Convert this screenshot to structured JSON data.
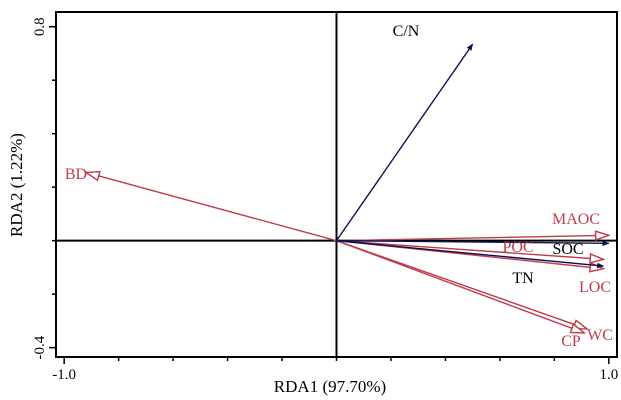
{
  "chart_data": {
    "type": "scatter",
    "subtype": "rda-biplot",
    "title": "",
    "xlabel": "RDA1 (97.70%)",
    "ylabel": "RDA2 (1.22%)",
    "xlim": [
      -1.03,
      1.03
    ],
    "ylim": [
      -0.435,
      0.855
    ],
    "x_ticks": [
      -1.0,
      1.0
    ],
    "x_tick_labels": [
      "-1.0",
      "1.0"
    ],
    "y_ticks": [
      0.8,
      -0.4
    ],
    "y_tick_labels": [
      "0.8",
      "-0.4"
    ],
    "grid": false,
    "zero_lines": true,
    "legend": "none",
    "colors": {
      "explanatory": "#0d1050",
      "response": "#c03c4a"
    },
    "series": [
      {
        "group": "explanatory",
        "arrow": "filled",
        "vectors": [
          {
            "label": "C/N",
            "x": 0.5,
            "y": 0.735
          },
          {
            "label": "SOC",
            "x": 1.0,
            "y": -0.01
          },
          {
            "label": "TN",
            "x": 0.98,
            "y": -0.095
          }
        ]
      },
      {
        "group": "response",
        "arrow": "open",
        "vectors": [
          {
            "label": "BD",
            "x": -0.92,
            "y": 0.255
          },
          {
            "label": "MAOC",
            "x": 1.0,
            "y": 0.02
          },
          {
            "label": "POC",
            "x": 0.98,
            "y": -0.07
          },
          {
            "label": "LOC",
            "x": 0.98,
            "y": -0.105
          },
          {
            "label": "WC",
            "x": 0.92,
            "y": -0.33
          },
          {
            "label": "CP",
            "x": 0.91,
            "y": -0.345
          }
        ]
      }
    ]
  }
}
